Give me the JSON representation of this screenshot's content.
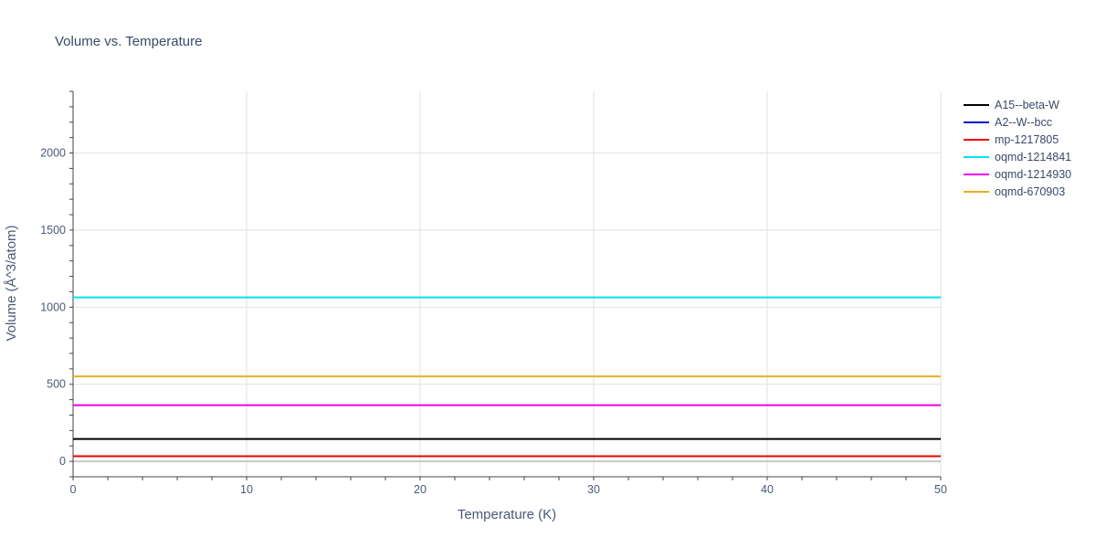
{
  "chart_data": {
    "type": "line",
    "title": "Volume vs. Temperature",
    "xlabel": "Temperature (K)",
    "ylabel": "Volume (Å^3/atom)",
    "xlim": [
      0,
      50
    ],
    "ylim": [
      -100,
      2400
    ],
    "xticks": [
      0,
      10,
      20,
      30,
      40,
      50
    ],
    "yticks": [
      0,
      500,
      1000,
      1500,
      2000
    ],
    "grid": true,
    "legend_position": "top-right",
    "series": [
      {
        "name": "A15--beta-W",
        "color": "#000000",
        "x": [
          0,
          50
        ],
        "y": [
          145,
          145
        ]
      },
      {
        "name": "A2--W--bcc",
        "color": "#0000dd",
        "x": [
          0,
          50
        ],
        "y": [
          33,
          33
        ]
      },
      {
        "name": "mp-1217805",
        "color": "#ee0000",
        "x": [
          0,
          50
        ],
        "y": [
          33,
          33
        ]
      },
      {
        "name": "oqmd-1214841",
        "color": "#00e5ee",
        "x": [
          0,
          50
        ],
        "y": [
          1063,
          1063
        ]
      },
      {
        "name": "oqmd-1214930",
        "color": "#ee00ee",
        "x": [
          0,
          50
        ],
        "y": [
          364,
          364
        ]
      },
      {
        "name": "oqmd-670903",
        "color": "#e8b020",
        "x": [
          0,
          50
        ],
        "y": [
          551,
          551
        ]
      }
    ]
  }
}
